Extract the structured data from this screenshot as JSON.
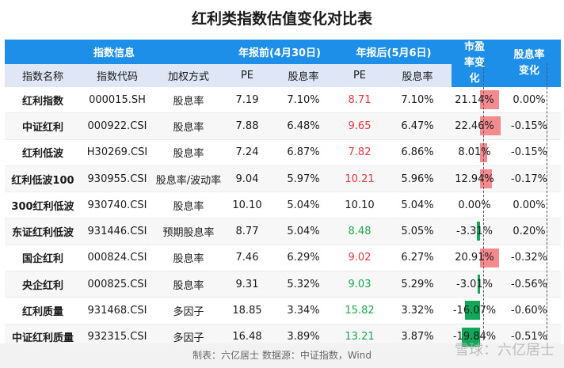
{
  "title": "红利类指数估值变化对比表",
  "group_headers": {
    "info": "指数信息",
    "before": "年报前(4月30日)",
    "after": "年报后(5月6日)",
    "pe_change": "市盈率变化",
    "dy_change": "股息率变化"
  },
  "columns": {
    "name": "指数名称",
    "code": "指数代码",
    "weight": "加权方式",
    "pe_before": "PE",
    "dy_before": "股息率",
    "pe_after": "PE",
    "dy_after": "股息率"
  },
  "rows": [
    {
      "name": "红利指数",
      "code": "000015.SH",
      "weight": "股息率",
      "pe_before": "7.19",
      "dy_before": "7.10%",
      "pe_after": "8.71",
      "dy_after": "7.10%",
      "pe_change": "21.14%",
      "pe_change_value": 21.14,
      "dy_change": "0.00%",
      "trend": "up"
    },
    {
      "name": "中证红利",
      "code": "000922.CSI",
      "weight": "股息率",
      "pe_before": "7.88",
      "dy_before": "6.48%",
      "pe_after": "9.65",
      "dy_after": "6.47%",
      "pe_change": "22.46%",
      "pe_change_value": 22.46,
      "dy_change": "-0.15%",
      "trend": "up"
    },
    {
      "name": "红利低波",
      "code": "H30269.CSI",
      "weight": "股息率",
      "pe_before": "7.24",
      "dy_before": "6.87%",
      "pe_after": "7.82",
      "dy_after": "6.86%",
      "pe_change": "8.01%",
      "pe_change_value": 8.01,
      "dy_change": "-0.15%",
      "trend": "up"
    },
    {
      "name": "红利低波100",
      "code": "930955.CSI",
      "weight": "股息率/波动率",
      "pe_before": "9.04",
      "dy_before": "5.97%",
      "pe_after": "10.21",
      "dy_after": "5.96%",
      "pe_change": "12.94%",
      "pe_change_value": 12.94,
      "dy_change": "-0.17%",
      "trend": "up"
    },
    {
      "name": "300红利低波",
      "code": "930740.CSI",
      "weight": "股息率",
      "pe_before": "10.10",
      "dy_before": "5.04%",
      "pe_after": "10.10",
      "dy_after": "5.04%",
      "pe_change": "0.00%",
      "pe_change_value": 0.0,
      "dy_change": "0.00%",
      "trend": "flat"
    },
    {
      "name": "东证红利低波",
      "code": "931446.CSI",
      "weight": "预期股息率",
      "pe_before": "8.77",
      "dy_before": "5.04%",
      "pe_after": "8.48",
      "dy_after": "5.05%",
      "pe_change": "-3.31%",
      "pe_change_value": -3.31,
      "dy_change": "0.20%",
      "trend": "down"
    },
    {
      "name": "国企红利",
      "code": "000824.CSI",
      "weight": "股息率",
      "pe_before": "7.46",
      "dy_before": "6.29%",
      "pe_after": "9.02",
      "dy_after": "6.27%",
      "pe_change": "20.91%",
      "pe_change_value": 20.91,
      "dy_change": "-0.32%",
      "trend": "up"
    },
    {
      "name": "央企红利",
      "code": "000825.CSI",
      "weight": "股息率",
      "pe_before": "9.31",
      "dy_before": "5.32%",
      "pe_after": "9.03",
      "dy_after": "5.29%",
      "pe_change": "-3.01%",
      "pe_change_value": -3.01,
      "dy_change": "-0.56%",
      "trend": "down"
    },
    {
      "name": "红利质量",
      "code": "931468.CSI",
      "weight": "多因子",
      "pe_before": "18.85",
      "dy_before": "3.34%",
      "pe_after": "15.82",
      "dy_after": "3.32%",
      "pe_change": "-16.07%",
      "pe_change_value": -16.07,
      "dy_change": "-0.60%",
      "trend": "down"
    },
    {
      "name": "中证红利质量",
      "code": "932315.CSI",
      "weight": "多因子",
      "pe_before": "16.48",
      "dy_before": "3.89%",
      "pe_after": "13.21",
      "dy_after": "3.87%",
      "pe_change": "-19.84%",
      "pe_change_value": -19.84,
      "dy_change": "-0.51%",
      "trend": "down"
    }
  ],
  "colors": {
    "header_blue": "#1e8fe8",
    "subheader": "#dfe7f6",
    "up_red": "#e8383d",
    "down_green": "#1aa84c",
    "bar_pos": "#f28a8f",
    "bar_neg": "#11a85a"
  },
  "footer": "制表：六亿居士 数据源：中证指数，Wind",
  "watermark": "雪球：六亿居士"
}
